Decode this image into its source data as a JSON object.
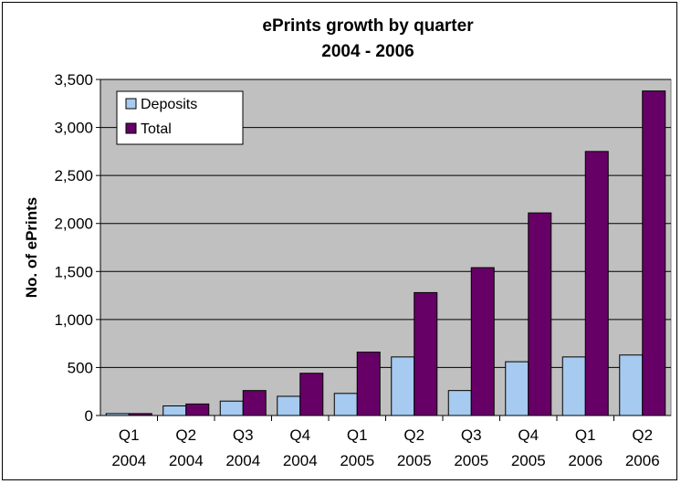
{
  "chart_data": {
    "type": "bar",
    "title_lines": [
      "ePrints growth by quarter",
      "2004 - 2006"
    ],
    "ylabel": "No. of ePrints",
    "xlabel": "",
    "ylim": [
      0,
      3500
    ],
    "y_ticks": [
      "0",
      "500",
      "1,000",
      "1,500",
      "2,000",
      "2,500",
      "3,000",
      "3,500"
    ],
    "y_tick_values": [
      0,
      500,
      1000,
      1500,
      2000,
      2500,
      3000,
      3500
    ],
    "categories": [
      [
        "Q1",
        "2004"
      ],
      [
        "Q2",
        "2004"
      ],
      [
        "Q3",
        "2004"
      ],
      [
        "Q4",
        "2004"
      ],
      [
        "Q1",
        "2005"
      ],
      [
        "Q2",
        "2005"
      ],
      [
        "Q3",
        "2005"
      ],
      [
        "Q4",
        "2005"
      ],
      [
        "Q1",
        "2006"
      ],
      [
        "Q2",
        "2006"
      ]
    ],
    "series": [
      {
        "name": "Deposits",
        "color": "#a6caf0",
        "values": [
          20,
          100,
          150,
          200,
          230,
          610,
          260,
          560,
          610,
          630
        ]
      },
      {
        "name": "Total",
        "color": "#660066",
        "values": [
          20,
          120,
          260,
          440,
          660,
          1280,
          1540,
          2110,
          2750,
          3380
        ]
      }
    ],
    "plot_background": "#c0c0c0",
    "grid": true,
    "legend_position": "top-left"
  }
}
